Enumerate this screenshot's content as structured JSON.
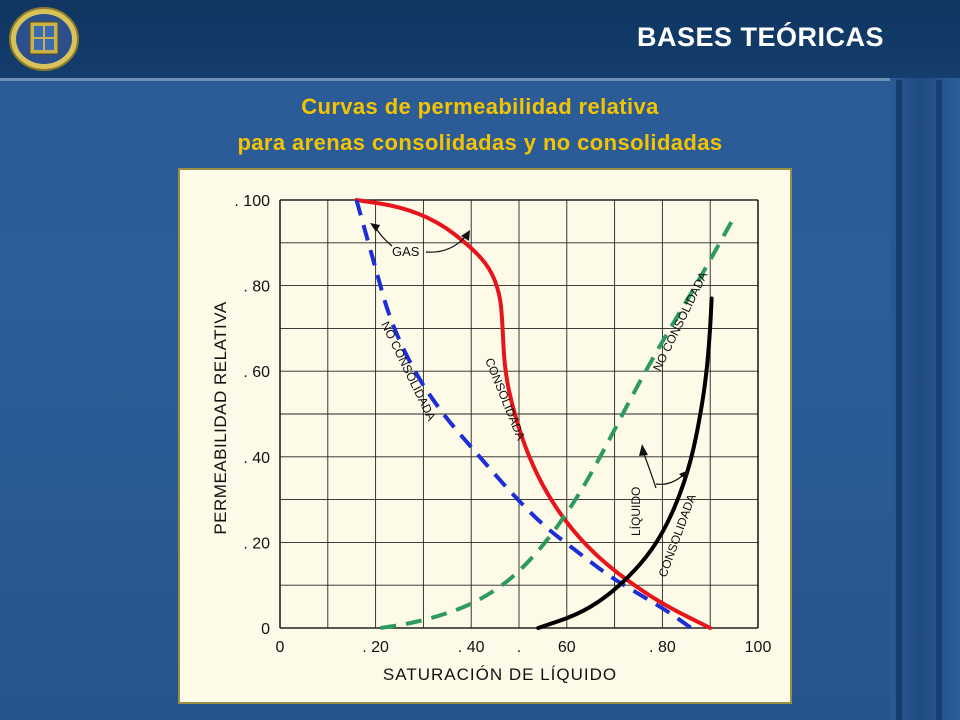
{
  "header": {
    "title": "BASES TEÓRICAS"
  },
  "slide": {
    "subtitle_line1": "Curvas de permeabilidad relativa",
    "subtitle_line2": "para arenas consolidadas  y no consolidadas"
  },
  "colors": {
    "header_bg": "#123a66",
    "slide_bg": "#2b5c97",
    "subtitle": "#f5c400",
    "chart_bg": "#fdfbe8",
    "consolidated_gas": "#e8141c",
    "unconsolidated_gas": "#1c2fd6",
    "unconsolidated_liquid": "#2e9a5e",
    "consolidated_liquid": "#000000"
  },
  "chart_data": {
    "type": "line",
    "xlabel": "SATURACIÓN DE LÍQUIDO",
    "ylabel": "PERMEABILIDAD  RELATIVA",
    "xlim": [
      0,
      100
    ],
    "ylim": [
      0,
      100
    ],
    "x_tick_labels": [
      "0",
      ". 20",
      ".   40",
      ".",
      "60",
      ". 80",
      "100"
    ],
    "y_tick_labels": [
      "0",
      ". 20",
      ". 40",
      ". 60",
      ". 80",
      ". 100"
    ],
    "grid": true,
    "series": [
      {
        "name": "CONSOLIDADA",
        "style": "solid",
        "color": "#e8141c",
        "x": [
          16,
          25,
          33,
          40,
          44,
          46,
          46.5,
          47,
          49,
          52,
          56,
          61,
          67,
          74,
          81,
          90
        ],
        "y": [
          100,
          98.5,
          95,
          89,
          84,
          78,
          72,
          60,
          50,
          40,
          31,
          23,
          16,
          10,
          5,
          0
        ]
      },
      {
        "name": "NO CONSOLIDADA",
        "style": "dashed",
        "color": "#1c2fd6",
        "x": [
          16,
          18,
          20,
          23,
          28,
          34,
          41,
          48,
          55,
          62,
          69,
          75,
          81,
          86
        ],
        "y": [
          100,
          92,
          84,
          72,
          60,
          50,
          41,
          32,
          24,
          18,
          12,
          8,
          4,
          0
        ]
      },
      {
        "name": "NO CONSOLIDADA",
        "style": "dashed",
        "color": "#2e9a5e",
        "x": [
          21,
          27,
          34,
          41,
          48,
          55,
          62,
          68,
          74,
          80,
          87,
          95
        ],
        "y": [
          0,
          1,
          3,
          6,
          11,
          19,
          30,
          42,
          55,
          67,
          80,
          96
        ]
      },
      {
        "name": "CONSOLIDADA",
        "style": "solid",
        "color": "#000000",
        "x": [
          54,
          62,
          68,
          74,
          79,
          83,
          86,
          88,
          89.3,
          90,
          90.3
        ],
        "y": [
          0,
          3,
          7,
          13,
          20,
          29,
          39,
          50,
          60,
          70,
          77
        ]
      }
    ],
    "annotations": {
      "gas": "GAS",
      "liquid": "LÍQUIDO",
      "consolidated": "CONSOLIDADA",
      "unconsolidated": "NO CONSOLIDADA"
    }
  }
}
